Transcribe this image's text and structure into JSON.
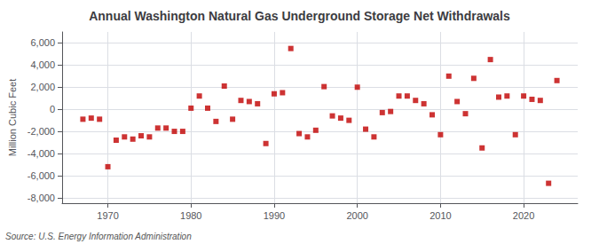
{
  "chart_data": {
    "type": "scatter",
    "title": "Annual Washington Natural Gas Underground Storage Net Withdrawals",
    "y_label": "Million Cubic Feet",
    "annotation": "Source: U.S. Energy Information Administration",
    "x": [
      1967,
      1968,
      1969,
      1970,
      1971,
      1972,
      1973,
      1974,
      1975,
      1976,
      1977,
      1978,
      1979,
      1980,
      1981,
      1982,
      1983,
      1984,
      1985,
      1986,
      1987,
      1988,
      1989,
      1990,
      1991,
      1992,
      1993,
      1994,
      1995,
      1996,
      1997,
      1998,
      1999,
      2000,
      2001,
      2002,
      2003,
      2004,
      2005,
      2006,
      2007,
      2008,
      2009,
      2010,
      2011,
      2012,
      2013,
      2014,
      2015,
      2016,
      2017,
      2018,
      2019,
      2020,
      2021,
      2022,
      2023,
      2024
    ],
    "values": [
      -900,
      -800,
      -900,
      -5200,
      -2800,
      -2500,
      -2700,
      -2400,
      -2500,
      -1700,
      -1700,
      -2000,
      -2000,
      100,
      1200,
      100,
      -1100,
      2100,
      -900,
      800,
      700,
      500,
      -3100,
      1400,
      1500,
      5500,
      -2200,
      -2500,
      -1900,
      2050,
      -600,
      -800,
      -1000,
      2000,
      -1800,
      -2500,
      -300,
      -200,
      1200,
      1200,
      800,
      500,
      -500,
      -2300,
      3000,
      700,
      -400,
      2800,
      -3500,
      4500,
      1100,
      1200,
      -2300,
      1200,
      900,
      800,
      -6700,
      2600
    ],
    "color": "#c00000",
    "marker": "square",
    "xlim": [
      1964.5,
      2026.5
    ],
    "xticks": [
      1970,
      1980,
      1990,
      2000,
      2010,
      2020
    ],
    "ylim": [
      -8500,
      7000
    ],
    "yticks": [
      {
        "value": -8000,
        "label": "-8,000"
      },
      {
        "value": -6000,
        "label": "-6,000"
      },
      {
        "value": -4000,
        "label": "-4,000"
      },
      {
        "value": -2000,
        "label": "-2,000"
      },
      0,
      {
        "value": 2000,
        "label": "2,000"
      },
      {
        "value": 4000,
        "label": "4,000"
      },
      {
        "value": 6000,
        "label": "6,000"
      }
    ],
    "grid": true
  }
}
